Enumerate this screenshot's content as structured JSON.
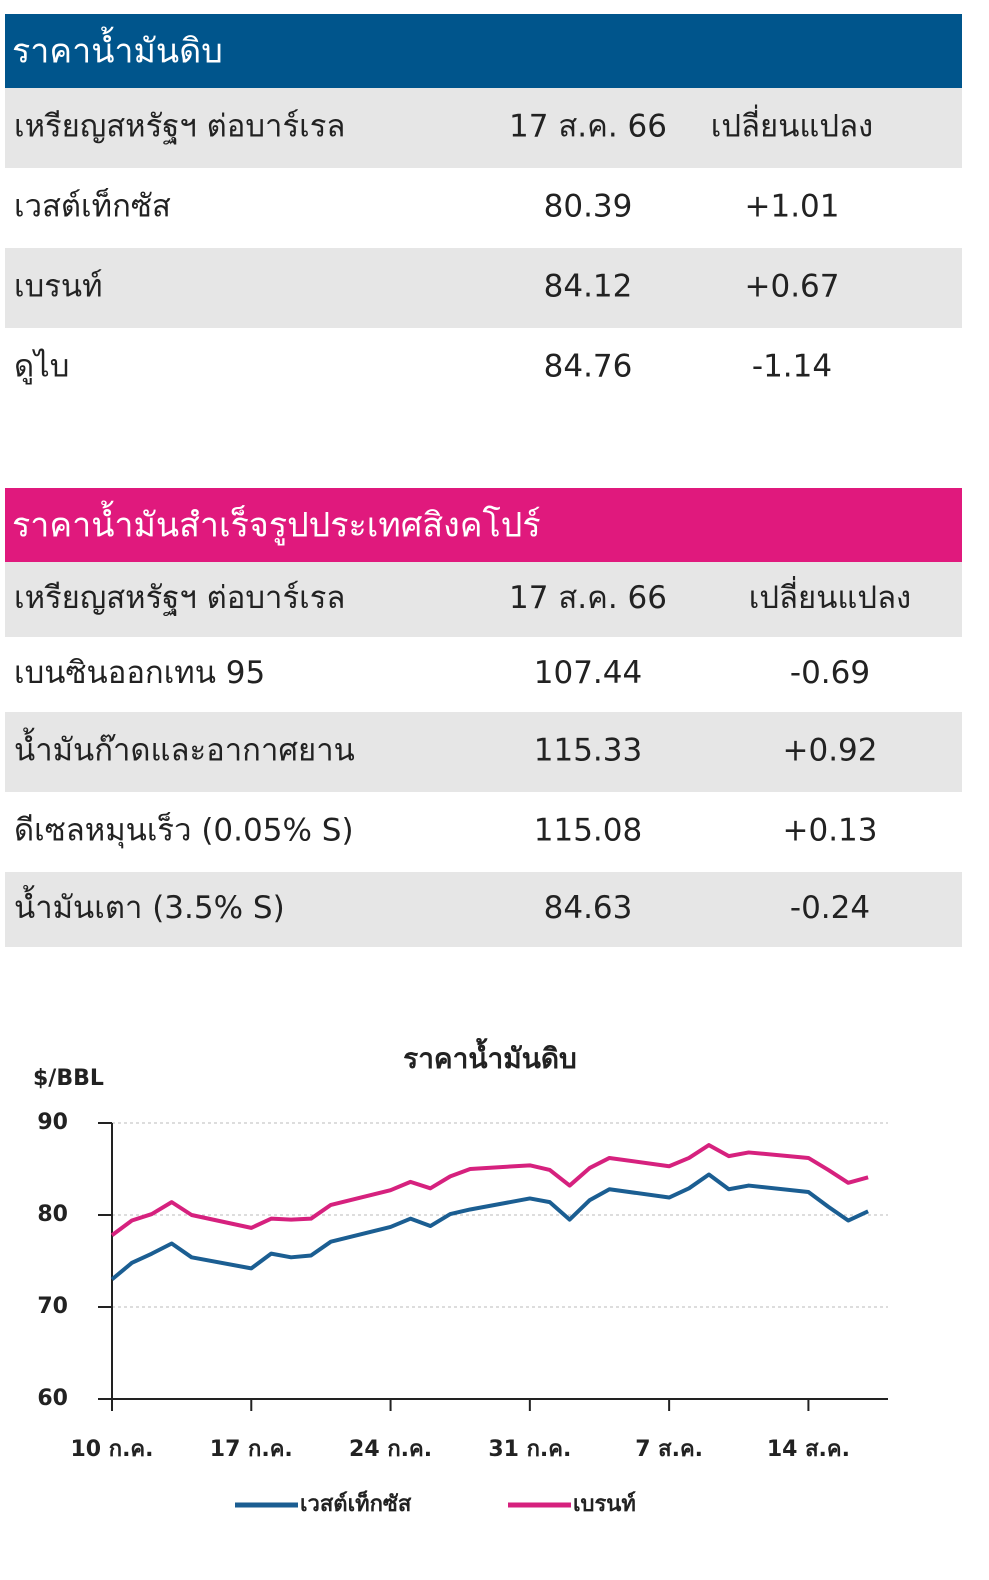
{
  "tables": [
    {
      "title": "ราคาน้ำมันดิบ",
      "header": [
        "เหรียญสหรัฐฯ ต่อบาร์เรล",
        "17 ส.ค. 66",
        "เปลี่ยนแปลง"
      ],
      "rows": [
        [
          "เวสต์เท็กซัส",
          "80.39",
          "+1.01"
        ],
        [
          "เบรนท์",
          "84.12",
          "+0.67"
        ],
        [
          "ดูไบ",
          "84.76",
          "-1.14"
        ]
      ]
    },
    {
      "title": "ราคาน้ำมันสำเร็จรูปประเทศสิงคโปร์",
      "header": [
        "เหรียญสหรัฐฯ ต่อบาร์เรล",
        "17 ส.ค. 66",
        "เปลี่ยนแปลง"
      ],
      "rows": [
        [
          "เบนซินออกเทน 95",
          "107.44",
          "-0.69"
        ],
        [
          "น้ำมันก๊าดและอากาศยาน",
          "115.33",
          "+0.92"
        ],
        [
          "ดีเซลหมุนเร็ว (0.05% S)",
          "115.08",
          "+0.13"
        ],
        [
          "น้ำมันเตา (3.5% S)",
          "84.63",
          "-0.24"
        ]
      ]
    }
  ],
  "chart_data": {
    "type": "line",
    "title": "ราคาน้ำมันดิบ",
    "y_label": "$/BBL",
    "x": [
      0,
      1,
      2,
      3,
      4,
      7,
      8,
      9,
      10,
      11,
      14,
      15,
      16,
      17,
      18,
      21,
      22,
      23,
      24,
      25,
      28,
      29,
      30,
      31,
      32,
      35,
      36,
      37,
      38
    ],
    "xlim": [
      0,
      39
    ],
    "xticks": [
      {
        "value": 0,
        "label": "10 ก.ค."
      },
      {
        "value": 7,
        "label": "17 ก.ค."
      },
      {
        "value": 14,
        "label": "24 ก.ค."
      },
      {
        "value": 21,
        "label": "31 ก.ค."
      },
      {
        "value": 28,
        "label": "7 ส.ค."
      },
      {
        "value": 35,
        "label": "14 ส.ค."
      }
    ],
    "ylim": [
      60,
      90
    ],
    "yticks": [
      60,
      70,
      80,
      90
    ],
    "grid": true,
    "series": [
      {
        "name": "เวสต์เท็กซัส",
        "color": "#1b5e92",
        "values": [
          73.0,
          74.8,
          75.8,
          76.9,
          75.4,
          74.2,
          75.8,
          75.4,
          75.6,
          77.1,
          78.7,
          79.6,
          78.8,
          80.1,
          80.6,
          81.8,
          81.4,
          79.5,
          81.6,
          82.8,
          81.9,
          82.9,
          84.4,
          82.8,
          83.2,
          82.5,
          80.9,
          79.4,
          80.4
        ]
      },
      {
        "name": "เบรนท์",
        "color": "#d6217e",
        "values": [
          77.8,
          79.4,
          80.1,
          81.4,
          80.0,
          78.6,
          79.6,
          79.5,
          79.6,
          81.1,
          82.7,
          83.6,
          82.9,
          84.2,
          85.0,
          85.4,
          84.9,
          83.2,
          85.1,
          86.2,
          85.3,
          86.2,
          87.6,
          86.4,
          86.8,
          86.2,
          84.9,
          83.5,
          84.1
        ]
      }
    ]
  }
}
